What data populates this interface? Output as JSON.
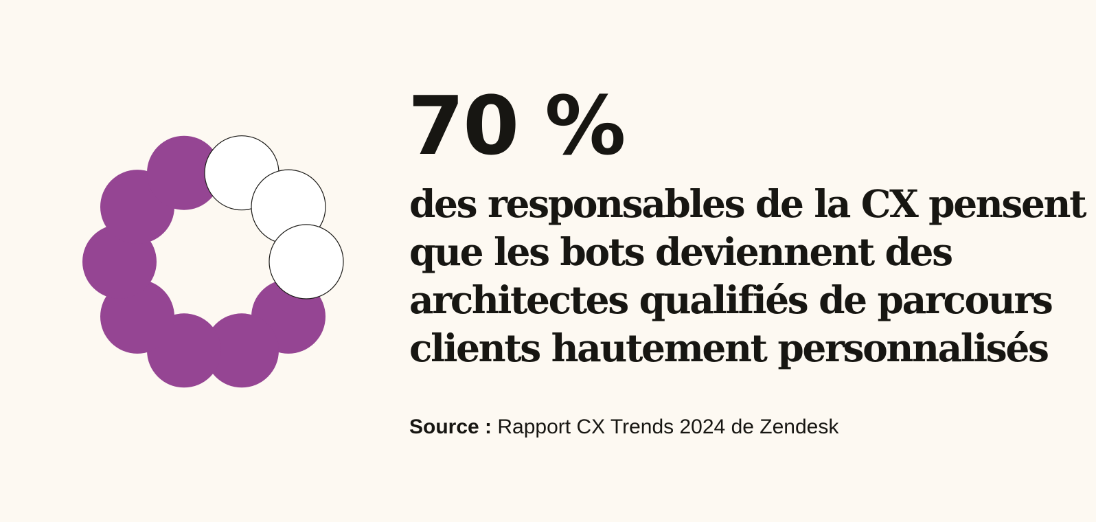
{
  "chart_data": {
    "type": "pie",
    "value_percent": 70,
    "segments_total": 10,
    "segments_filled": 7,
    "filled_color": "#954593",
    "empty_color": "#ffffff",
    "outline_color": "#1b1a17"
  },
  "stat": {
    "value": "70 %"
  },
  "headline": {
    "lines": [
      "des responsables de la CX pensent",
      "que les bots deviennent des",
      "architectes qualifiés de parcours",
      "clients hautement personnalisés"
    ]
  },
  "source": {
    "label": "Source :",
    "text": "Rapport CX Trends 2024 de Zendesk"
  }
}
